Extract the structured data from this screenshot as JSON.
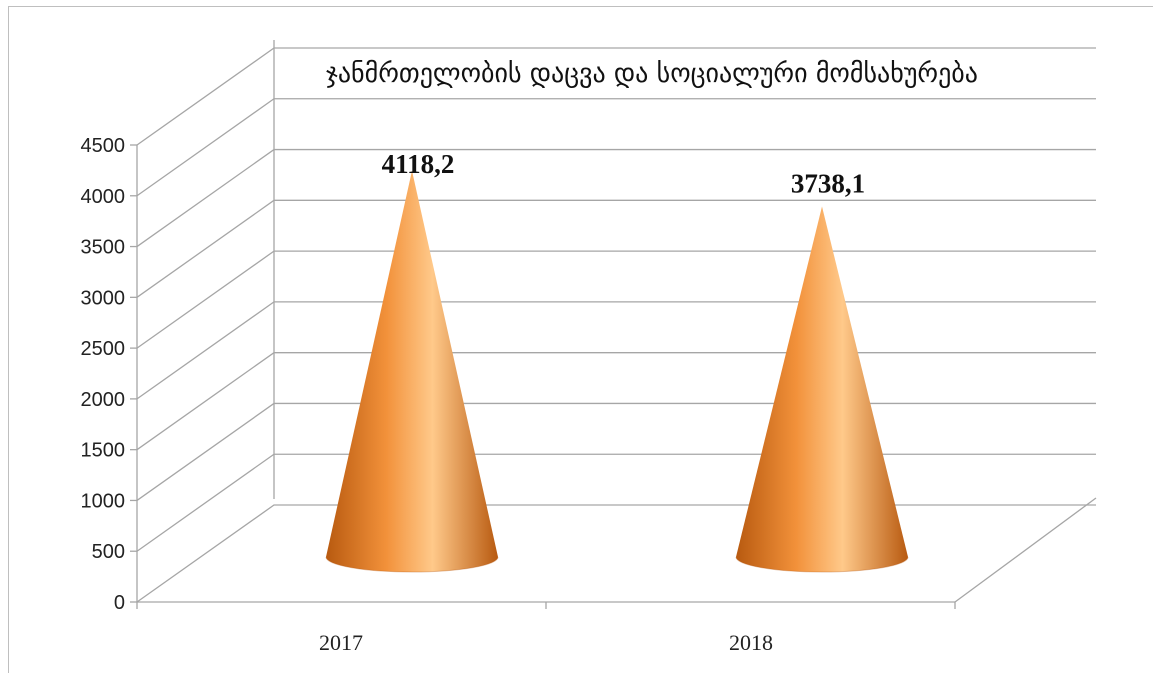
{
  "chart_data": {
    "type": "bar",
    "style": "3d-cone",
    "title": "ჯანმრთელობის დაცვა და სოციალური მომსახურება",
    "categories": [
      "2017",
      "2018"
    ],
    "values": [
      4118.2,
      3738.1
    ],
    "data_labels": [
      "4118,2",
      "3738,1"
    ],
    "ylim": [
      0,
      4500
    ],
    "yticks": [
      "0",
      "500",
      "1000",
      "1500",
      "2000",
      "2500",
      "3000",
      "3500",
      "4000",
      "4500"
    ],
    "grid": true,
    "legend": "none",
    "colors": {
      "cone": "#f2913a",
      "cone_dark": "#b85a10",
      "cone_light": "#ffc98a",
      "grid": "#a6a6a6"
    }
  }
}
